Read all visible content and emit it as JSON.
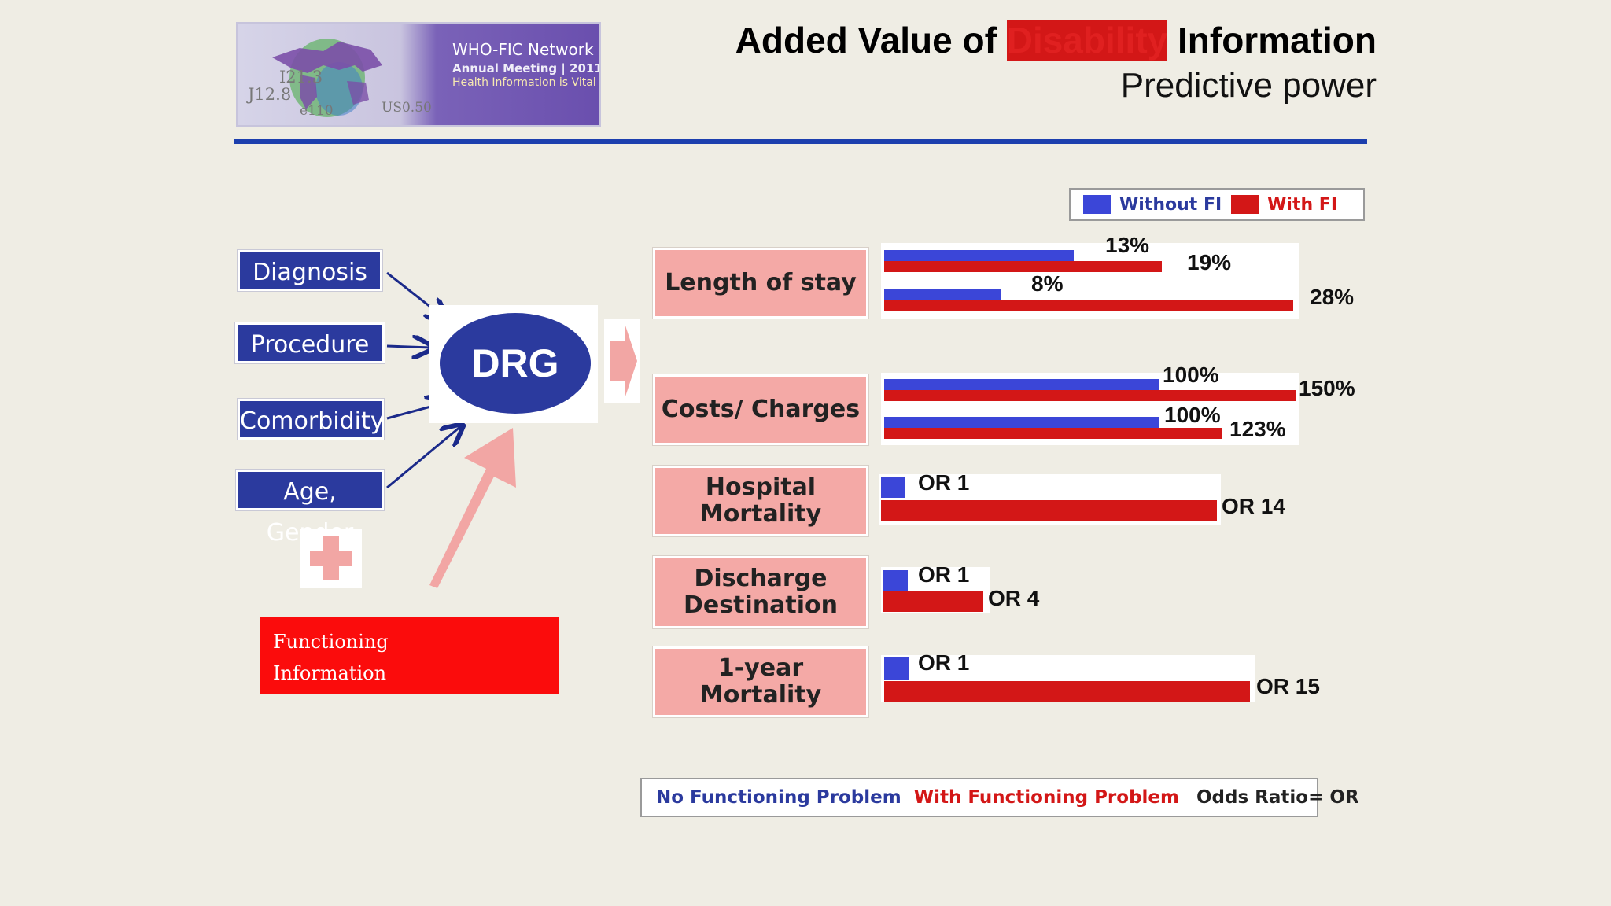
{
  "logo": {
    "title": "WHO-FIC Network",
    "subtitle": "Annual Meeting | 2011",
    "tagline": "Health Information is Vital",
    "numbers": [
      "I21.3",
      "J12.8",
      "e110",
      "US0.50"
    ]
  },
  "header": {
    "title_part1": "Added Value of ",
    "title_highlight": "Disability",
    "title_part2": " Information",
    "subtitle": "Predictive power"
  },
  "inputs": [
    "Diagnosis",
    "Procedure",
    "Comorbidity",
    "Age, Gender"
  ],
  "drg_label": "DRG",
  "functioning_label_1": "Functioning",
  "functioning_label_2": "Information",
  "top_legend": {
    "without": "Without FI",
    "with": "With FI"
  },
  "colors": {
    "blue": "#3b46d8",
    "red": "#d31717",
    "brand_blue": "#2b3a9e",
    "accent_red": "#fb0c0c",
    "category_pink": "#f4a9a6"
  },
  "chart_data": {
    "type": "bar",
    "orientation": "horizontal",
    "groups": [
      {
        "category": "Length of stay",
        "pairs": [
          {
            "without": 13,
            "without_label": "13%",
            "with": 19,
            "with_label": "19%"
          },
          {
            "without": 8,
            "without_label": "8%",
            "with": 28,
            "with_label": "28%"
          }
        ]
      },
      {
        "category": "Costs/ Charges",
        "pairs": [
          {
            "without": 100,
            "without_label": "100%",
            "with": 150,
            "with_label": "150%"
          },
          {
            "without": 100,
            "without_label": "100%",
            "with": 123,
            "with_label": "123%"
          }
        ]
      },
      {
        "category": "Hospital Mortality",
        "pairs": [
          {
            "without": 1,
            "without_label": "OR 1",
            "with": 14,
            "with_label": "OR 14"
          }
        ]
      },
      {
        "category": "Discharge Destination",
        "pairs": [
          {
            "without": 1,
            "without_label": "OR 1",
            "with": 4,
            "with_label": "OR 4"
          }
        ]
      },
      {
        "category": "1-year Mortality",
        "pairs": [
          {
            "without": 1,
            "without_label": "OR 1",
            "with": 15,
            "with_label": "OR 15"
          }
        ]
      }
    ]
  },
  "bottom_legend": {
    "no_problem": "No Functioning Problem",
    "with_problem": "With Functioning Problem",
    "note": "Odds Ratio= OR"
  }
}
